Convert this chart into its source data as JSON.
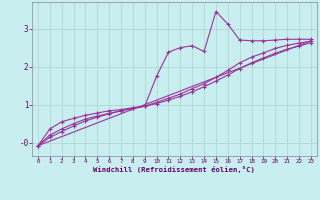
{
  "xlabel": "Windchill (Refroidissement éolien,°C)",
  "xlim": [
    -0.5,
    23.5
  ],
  "ylim": [
    -0.35,
    3.7
  ],
  "xticks": [
    0,
    1,
    2,
    3,
    4,
    5,
    6,
    7,
    8,
    9,
    10,
    11,
    12,
    13,
    14,
    15,
    16,
    17,
    18,
    19,
    20,
    21,
    22,
    23
  ],
  "yticks": [
    0,
    1,
    2,
    3
  ],
  "ytick_labels": [
    "-0",
    "1",
    "2",
    "3"
  ],
  "bg_color": "#c8eef0",
  "line_color": "#993399",
  "grid_color": "#aed4cc",
  "line1_x": [
    0,
    1,
    2,
    3,
    4,
    5,
    6,
    7,
    8,
    9,
    10,
    11,
    12,
    13,
    14,
    15,
    16,
    17,
    18,
    19,
    20,
    21,
    22,
    23
  ],
  "line1_y": [
    -0.08,
    0.36,
    0.55,
    0.64,
    0.72,
    0.78,
    0.84,
    0.87,
    0.92,
    0.96,
    1.75,
    2.38,
    2.5,
    2.55,
    2.4,
    3.45,
    3.12,
    2.7,
    2.68,
    2.68,
    2.7,
    2.72,
    2.72,
    2.72
  ],
  "line2_x": [
    0,
    1,
    2,
    3,
    4,
    5,
    6,
    7,
    8,
    9,
    10,
    11,
    12,
    13,
    14,
    15,
    16,
    17,
    18,
    19,
    20,
    21,
    22,
    23
  ],
  "line2_y": [
    -0.08,
    0.2,
    0.36,
    0.5,
    0.62,
    0.7,
    0.77,
    0.84,
    0.9,
    0.96,
    1.06,
    1.17,
    1.28,
    1.42,
    1.55,
    1.72,
    1.9,
    2.1,
    2.25,
    2.36,
    2.48,
    2.56,
    2.62,
    2.67
  ],
  "line3_x": [
    0,
    1,
    2,
    3,
    4,
    5,
    6,
    7,
    8,
    9,
    10,
    11,
    12,
    13,
    14,
    15,
    16,
    17,
    18,
    19,
    20,
    21,
    22,
    23
  ],
  "line3_y": [
    -0.08,
    0.14,
    0.29,
    0.44,
    0.57,
    0.67,
    0.76,
    0.84,
    0.9,
    0.96,
    1.03,
    1.12,
    1.22,
    1.34,
    1.47,
    1.62,
    1.78,
    1.95,
    2.1,
    2.23,
    2.35,
    2.46,
    2.54,
    2.63
  ],
  "line4_x": [
    0,
    23
  ],
  "line4_y": [
    -0.08,
    2.68
  ]
}
